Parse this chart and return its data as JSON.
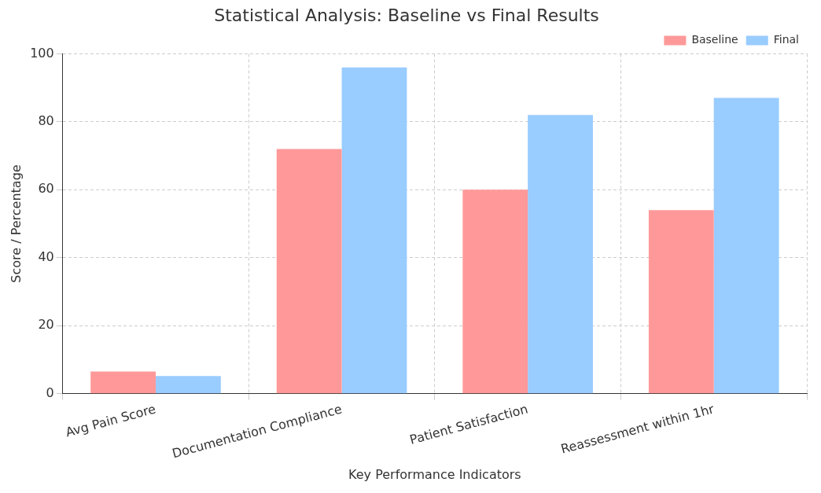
{
  "chart_data": {
    "type": "bar",
    "title": "Statistical Analysis: Baseline vs Final Results",
    "xlabel": "Key Performance Indicators",
    "ylabel": "Score / Percentage",
    "categories": [
      "Avg Pain Score",
      "Documentation Compliance",
      "Patient Satisfaction",
      "Reassessment within 1hr"
    ],
    "series": [
      {
        "name": "Baseline",
        "color": "#ff9999",
        "values": [
          6.5,
          72,
          60,
          54
        ]
      },
      {
        "name": "Final",
        "color": "#99ccff",
        "values": [
          5.2,
          96,
          82,
          87
        ]
      }
    ],
    "ylim": [
      0,
      100
    ],
    "yticks": [
      0,
      20,
      40,
      60,
      80,
      100
    ],
    "grid": true,
    "legend": "top right"
  }
}
